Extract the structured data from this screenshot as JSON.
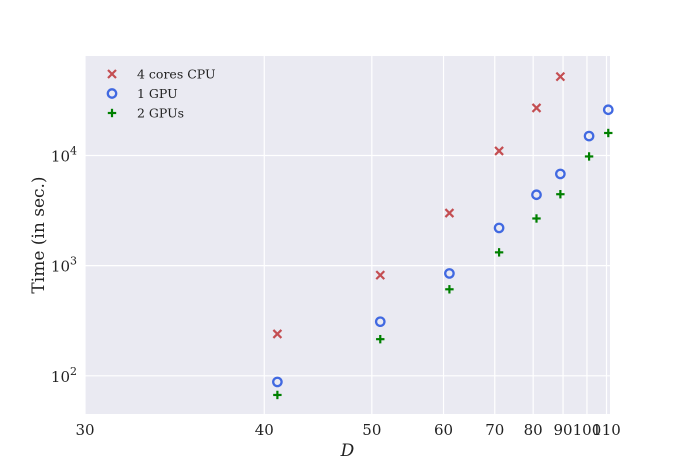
{
  "chart_data": {
    "type": "scatter",
    "title": "",
    "xlabel": "D",
    "ylabel": "Time (in sec.)",
    "x_scale": "reciprocal",
    "y_scale": "log",
    "xlim": [
      30,
      112
    ],
    "ylim": [
      45,
      80000
    ],
    "grid": true,
    "legend_position": "top-left",
    "background_color": "#eaeaf2",
    "grid_color": "#ffffff",
    "x_ticks": [
      30,
      40,
      50,
      60,
      70,
      80,
      90,
      100,
      110
    ],
    "x_tick_labels": [
      "30",
      "40",
      "50",
      "60",
      "70",
      "80",
      "90",
      "100",
      "110"
    ],
    "y_ticks": [
      100,
      1000,
      10000
    ],
    "y_tick_labels": [
      {
        "base": "10",
        "exp": "2"
      },
      {
        "base": "10",
        "exp": "3"
      },
      {
        "base": "10",
        "exp": "4"
      }
    ],
    "series": [
      {
        "name": "4 cores CPU",
        "marker": "x",
        "color": "#c44e52",
        "x": [
          41,
          51,
          61,
          71,
          81,
          89
        ],
        "y": [
          240,
          820,
          3000,
          11000,
          27000,
          52000
        ]
      },
      {
        "name": "1 GPU",
        "marker": "o",
        "color": "#4169e1",
        "x": [
          41,
          51,
          61,
          71,
          81,
          89,
          101,
          111
        ],
        "y": [
          88,
          310,
          850,
          2200,
          4400,
          6800,
          15000,
          26000
        ]
      },
      {
        "name": "2 GPUs",
        "marker": "+",
        "color": "#008000",
        "x": [
          41,
          51,
          61,
          71,
          81,
          89,
          101,
          111
        ],
        "y": [
          67,
          215,
          610,
          1320,
          2680,
          4450,
          9800,
          16000
        ]
      }
    ]
  }
}
